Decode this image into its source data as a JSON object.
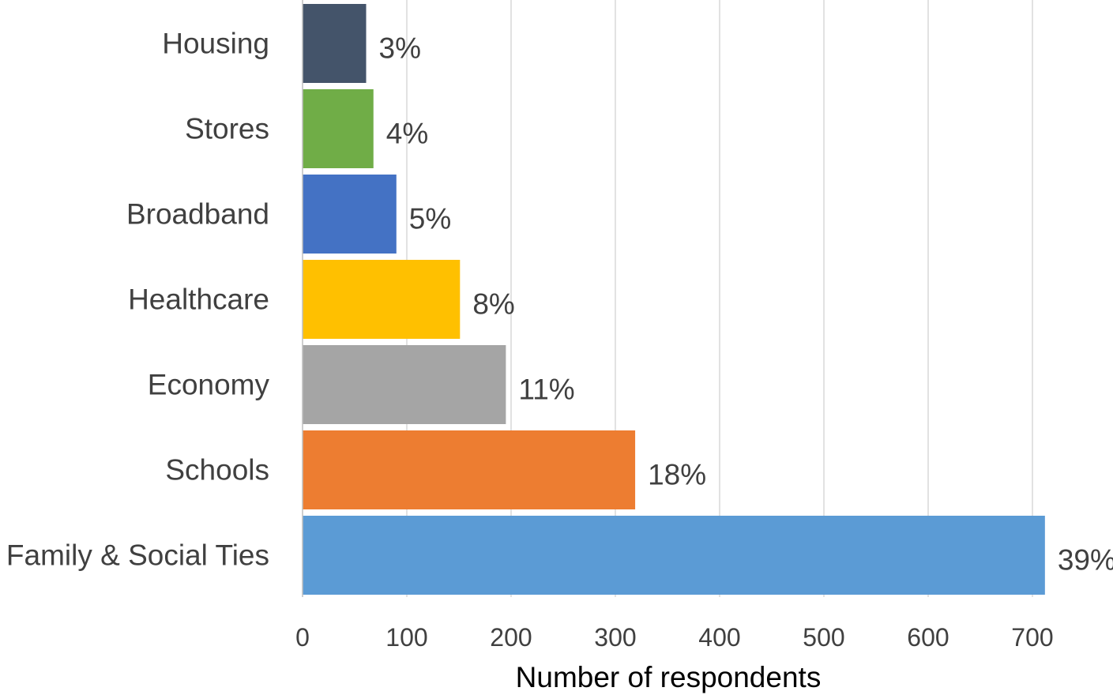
{
  "chart_data": {
    "type": "bar",
    "orientation": "horizontal",
    "title": "",
    "xlabel": "Number of respondents",
    "ylabel": "",
    "xlim": [
      0,
      700
    ],
    "x_ticks": [
      0,
      100,
      200,
      300,
      400,
      500,
      600,
      700
    ],
    "grid": "vertical",
    "legend": "none",
    "categories": [
      "Housing",
      "Stores",
      "Broadband",
      "Healthcare",
      "Economy",
      "Schools",
      "Family & Social Ties"
    ],
    "values": [
      61,
      68,
      90,
      151,
      195,
      319,
      712
    ],
    "data_labels": [
      "3%",
      "4%",
      "5%",
      "8%",
      "11%",
      "18%",
      "39%"
    ],
    "colors": [
      "#44546a",
      "#70ad47",
      "#4472c4",
      "#ffc000",
      "#a5a5a5",
      "#ed7d31",
      "#5b9bd5"
    ]
  }
}
